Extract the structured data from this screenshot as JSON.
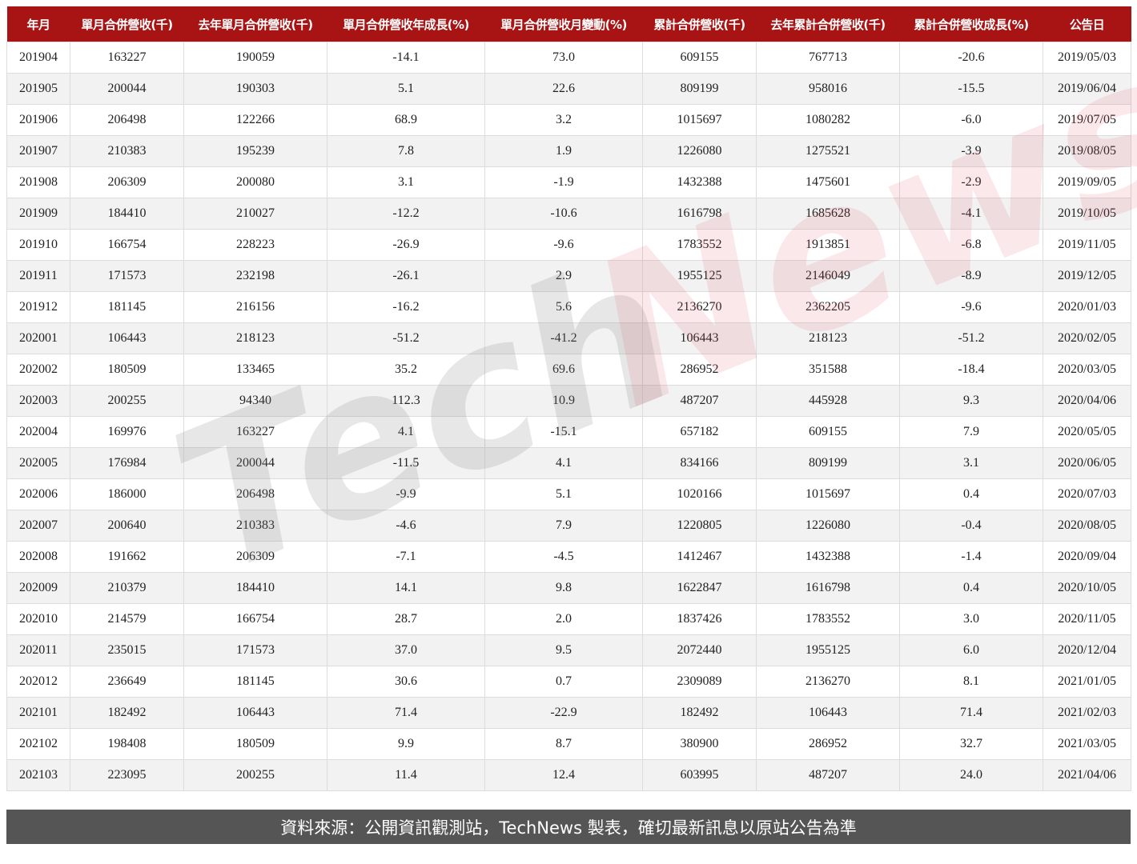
{
  "chart_data": {
    "type": "table",
    "columns": [
      "年月",
      "單月合併營收(千)",
      "去年單月合併營收(千)",
      "單月合併營收年成長(%)",
      "單月合併營收月變動(%)",
      "累計合併營收(千)",
      "去年累計合併營收(千)",
      "累計合併營收成長(%)",
      "公告日"
    ],
    "rows": [
      [
        "201904",
        "163227",
        "190059",
        "-14.1",
        "73.0",
        "609155",
        "767713",
        "-20.6",
        "2019/05/03"
      ],
      [
        "201905",
        "200044",
        "190303",
        "5.1",
        "22.6",
        "809199",
        "958016",
        "-15.5",
        "2019/06/04"
      ],
      [
        "201906",
        "206498",
        "122266",
        "68.9",
        "3.2",
        "1015697",
        "1080282",
        "-6.0",
        "2019/07/05"
      ],
      [
        "201907",
        "210383",
        "195239",
        "7.8",
        "1.9",
        "1226080",
        "1275521",
        "-3.9",
        "2019/08/05"
      ],
      [
        "201908",
        "206309",
        "200080",
        "3.1",
        "-1.9",
        "1432388",
        "1475601",
        "-2.9",
        "2019/09/05"
      ],
      [
        "201909",
        "184410",
        "210027",
        "-12.2",
        "-10.6",
        "1616798",
        "1685628",
        "-4.1",
        "2019/10/05"
      ],
      [
        "201910",
        "166754",
        "228223",
        "-26.9",
        "-9.6",
        "1783552",
        "1913851",
        "-6.8",
        "2019/11/05"
      ],
      [
        "201911",
        "171573",
        "232198",
        "-26.1",
        "2.9",
        "1955125",
        "2146049",
        "-8.9",
        "2019/12/05"
      ],
      [
        "201912",
        "181145",
        "216156",
        "-16.2",
        "5.6",
        "2136270",
        "2362205",
        "-9.6",
        "2020/01/03"
      ],
      [
        "202001",
        "106443",
        "218123",
        "-51.2",
        "-41.2",
        "106443",
        "218123",
        "-51.2",
        "2020/02/05"
      ],
      [
        "202002",
        "180509",
        "133465",
        "35.2",
        "69.6",
        "286952",
        "351588",
        "-18.4",
        "2020/03/05"
      ],
      [
        "202003",
        "200255",
        "94340",
        "112.3",
        "10.9",
        "487207",
        "445928",
        "9.3",
        "2020/04/06"
      ],
      [
        "202004",
        "169976",
        "163227",
        "4.1",
        "-15.1",
        "657182",
        "609155",
        "7.9",
        "2020/05/05"
      ],
      [
        "202005",
        "176984",
        "200044",
        "-11.5",
        "4.1",
        "834166",
        "809199",
        "3.1",
        "2020/06/05"
      ],
      [
        "202006",
        "186000",
        "206498",
        "-9.9",
        "5.1",
        "1020166",
        "1015697",
        "0.4",
        "2020/07/03"
      ],
      [
        "202007",
        "200640",
        "210383",
        "-4.6",
        "7.9",
        "1220805",
        "1226080",
        "-0.4",
        "2020/08/05"
      ],
      [
        "202008",
        "191662",
        "206309",
        "-7.1",
        "-4.5",
        "1412467",
        "1432388",
        "-1.4",
        "2020/09/04"
      ],
      [
        "202009",
        "210379",
        "184410",
        "14.1",
        "9.8",
        "1622847",
        "1616798",
        "0.4",
        "2020/10/05"
      ],
      [
        "202010",
        "214579",
        "166754",
        "28.7",
        "2.0",
        "1837426",
        "1783552",
        "3.0",
        "2020/11/05"
      ],
      [
        "202011",
        "235015",
        "171573",
        "37.0",
        "9.5",
        "2072440",
        "1955125",
        "6.0",
        "2020/12/04"
      ],
      [
        "202012",
        "236649",
        "181145",
        "30.6",
        "0.7",
        "2309089",
        "2136270",
        "8.1",
        "2021/01/05"
      ],
      [
        "202101",
        "182492",
        "106443",
        "71.4",
        "-22.9",
        "182492",
        "106443",
        "71.4",
        "2021/02/03"
      ],
      [
        "202102",
        "198408",
        "180509",
        "9.9",
        "8.7",
        "380900",
        "286952",
        "32.7",
        "2021/03/05"
      ],
      [
        "202103",
        "223095",
        "200255",
        "11.4",
        "12.4",
        "603995",
        "487207",
        "24.0",
        "2021/04/06"
      ]
    ]
  },
  "footer": {
    "source": "資料來源：公開資訊觀測站，TechNews 製表，確切最新訊息以原站公告為準"
  },
  "watermark": {
    "part1": "Tech",
    "part2": "News"
  },
  "colors": {
    "header_bg": "#a81414",
    "footer_bg": "#555555",
    "alt_row": "#f2f2f2"
  }
}
